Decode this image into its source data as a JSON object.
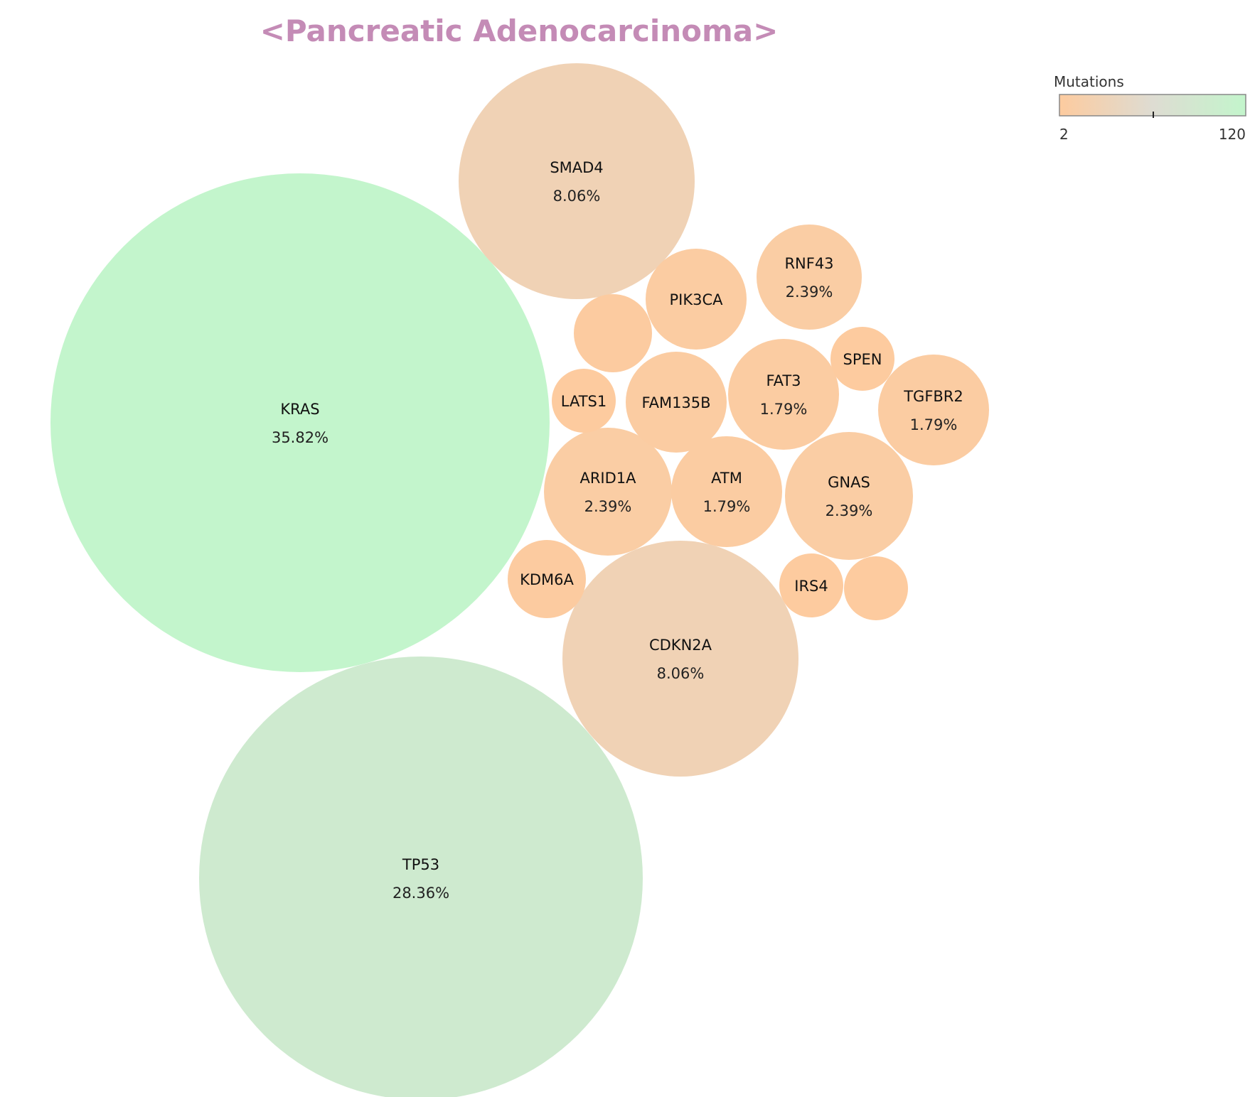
{
  "title": "<Pancreatic Adenocarcinoma>",
  "colors": {
    "low": "#fdcb9f",
    "mid": "#dedcd2",
    "high": "#c3f5cc",
    "title": "#c48bb6"
  },
  "chart_data": {
    "type": "bubble",
    "title": "<Pancreatic Adenocarcinoma>",
    "color_scale": {
      "title": "Mutations",
      "min": 2,
      "max": 120,
      "min_label": "2",
      "max_label": "120"
    },
    "bubbles": [
      {
        "gene": "KRAS",
        "mutations": 120,
        "percent": "35.82%"
      },
      {
        "gene": "TP53",
        "mutations": 95,
        "percent": "28.36%"
      },
      {
        "gene": "SMAD4",
        "mutations": 27,
        "percent": "8.06%"
      },
      {
        "gene": "CDKN2A",
        "mutations": 27,
        "percent": "8.06%"
      },
      {
        "gene": "RNF43",
        "mutations": 8,
        "percent": "2.39%"
      },
      {
        "gene": "ARID1A",
        "mutations": 8,
        "percent": "2.39%"
      },
      {
        "gene": "GNAS",
        "mutations": 8,
        "percent": "2.39%"
      },
      {
        "gene": "FAT3",
        "mutations": 6,
        "percent": "1.79%"
      },
      {
        "gene": "TGFBR2",
        "mutations": 6,
        "percent": "1.79%"
      },
      {
        "gene": "ATM",
        "mutations": 6,
        "percent": "1.79%"
      },
      {
        "gene": "PIK3CA",
        "mutations": 5,
        "percent": ""
      },
      {
        "gene": "FAM135B",
        "mutations": 5,
        "percent": ""
      },
      {
        "gene": "",
        "mutations": 3,
        "percent": ""
      },
      {
        "gene": "LATS1",
        "mutations": 2,
        "percent": ""
      },
      {
        "gene": "KDM6A",
        "mutations": 3,
        "percent": ""
      },
      {
        "gene": "SPEN",
        "mutations": 2,
        "percent": ""
      },
      {
        "gene": "IRS4",
        "mutations": 2,
        "percent": ""
      },
      {
        "gene": "",
        "mutations": 2,
        "percent": ""
      }
    ]
  }
}
